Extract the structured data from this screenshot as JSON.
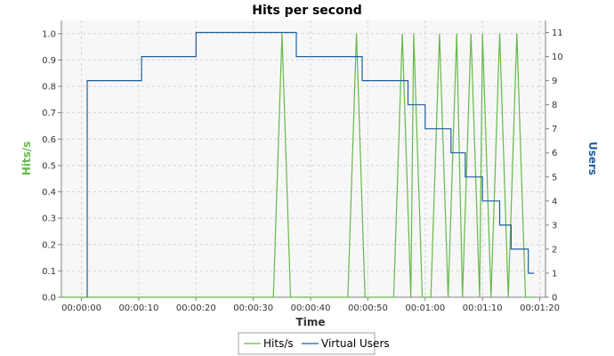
{
  "chart_data": {
    "type": "line",
    "title": "Hits per second",
    "xlabel": "Time",
    "ylabel_left": "Hits/s",
    "ylabel_right": "Users",
    "x_unit": "seconds",
    "x_ticks": [
      0,
      10,
      20,
      30,
      40,
      50,
      60,
      70,
      80
    ],
    "x_tick_labels": [
      "00:00:00",
      "00:00:10",
      "00:00:20",
      "00:00:30",
      "00:00:40",
      "00:00:50",
      "00:01:00",
      "00:01:10",
      "00:01:20"
    ],
    "xlim": [
      -3.5,
      81
    ],
    "ylim_left": [
      0,
      1.05
    ],
    "y_ticks_left": [
      0.0,
      0.1,
      0.2,
      0.3,
      0.4,
      0.5,
      0.6,
      0.7,
      0.8,
      0.9,
      1.0
    ],
    "y_tick_labels_left": [
      "0.0",
      "0.1",
      "0.2",
      "0.3",
      "0.4",
      "0.5",
      "0.6",
      "0.7",
      "0.8",
      "0.9",
      "1.0"
    ],
    "ylim_right": [
      0,
      11.5
    ],
    "y_ticks_right": [
      0,
      1,
      2,
      3,
      4,
      5,
      6,
      7,
      8,
      9,
      10,
      11
    ],
    "y_tick_labels_right": [
      "0",
      "1",
      "2",
      "3",
      "4",
      "5",
      "6",
      "7",
      "8",
      "9",
      "10",
      "11"
    ],
    "grid": true,
    "legend_position": "bottom-center",
    "series": [
      {
        "name": "Hits/s",
        "axis": "left",
        "color": "#66b84a",
        "x": [
          -3.5,
          33.5,
          35,
          36.5,
          46.5,
          48,
          49.5,
          54.5,
          56,
          57.5,
          58,
          59.5,
          61,
          62.5,
          64,
          65.5,
          66.5,
          68,
          69.5,
          70,
          71.5,
          73,
          74.5,
          76,
          77.5,
          79
        ],
        "values": [
          0,
          0,
          1,
          0,
          0,
          1,
          0,
          0,
          1,
          0,
          1,
          0,
          0,
          1,
          0,
          1,
          0,
          1,
          0,
          1,
          0,
          1,
          0,
          1,
          0,
          0
        ]
      },
      {
        "name": "Virtual Users",
        "axis": "right",
        "color": "#1f5f9e",
        "step": true,
        "x": [
          1,
          1,
          10.5,
          20,
          37.5,
          49,
          57,
          60,
          64.5,
          67,
          70,
          73,
          75,
          78,
          79
        ],
        "values": [
          0,
          9,
          10,
          11,
          10,
          9,
          8,
          7,
          6,
          5,
          4,
          3,
          2,
          1,
          1
        ]
      }
    ]
  }
}
